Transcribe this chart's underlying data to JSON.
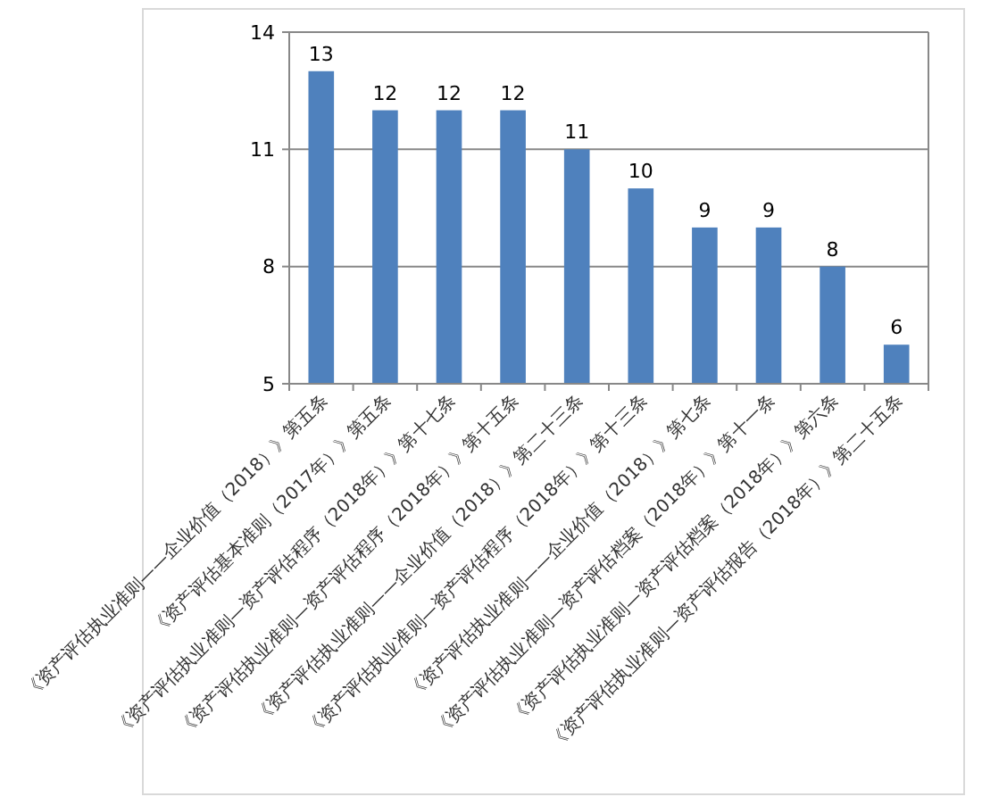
{
  "chart_data": {
    "type": "bar",
    "categories": [
      "《资产评估执业准则——企业价值（2018）》第五条",
      "《资产评估基本准则（2017年）》第五条",
      "《资产评估执业准则—资产评估程序（2018年）》第十七条",
      "《资产评估执业准则—资产评估程序（2018年）》第十五条",
      "《资产评估执业准则——企业价值（2018）》第二十三条",
      "《资产评估执业准则—资产评估程序（2018年）》第十三条",
      "《资产评估执业准则——企业价值（2018）》第七条",
      "《资产评估执业准则—资产评估档案（2018年）》第十一条",
      "《资产评估执业准则—资产评估档案（2018年）》第六条",
      "《资产评估执业准则—资产评估报告（2018年）》第二十五条"
    ],
    "values": [
      13,
      12,
      12,
      12,
      11,
      10,
      9,
      9,
      8,
      6
    ],
    "color": "#4f81bd",
    "ylim": [
      5,
      14
    ],
    "yticks": [
      5,
      8,
      11,
      14
    ],
    "grid": "y",
    "data_labels": true
  }
}
